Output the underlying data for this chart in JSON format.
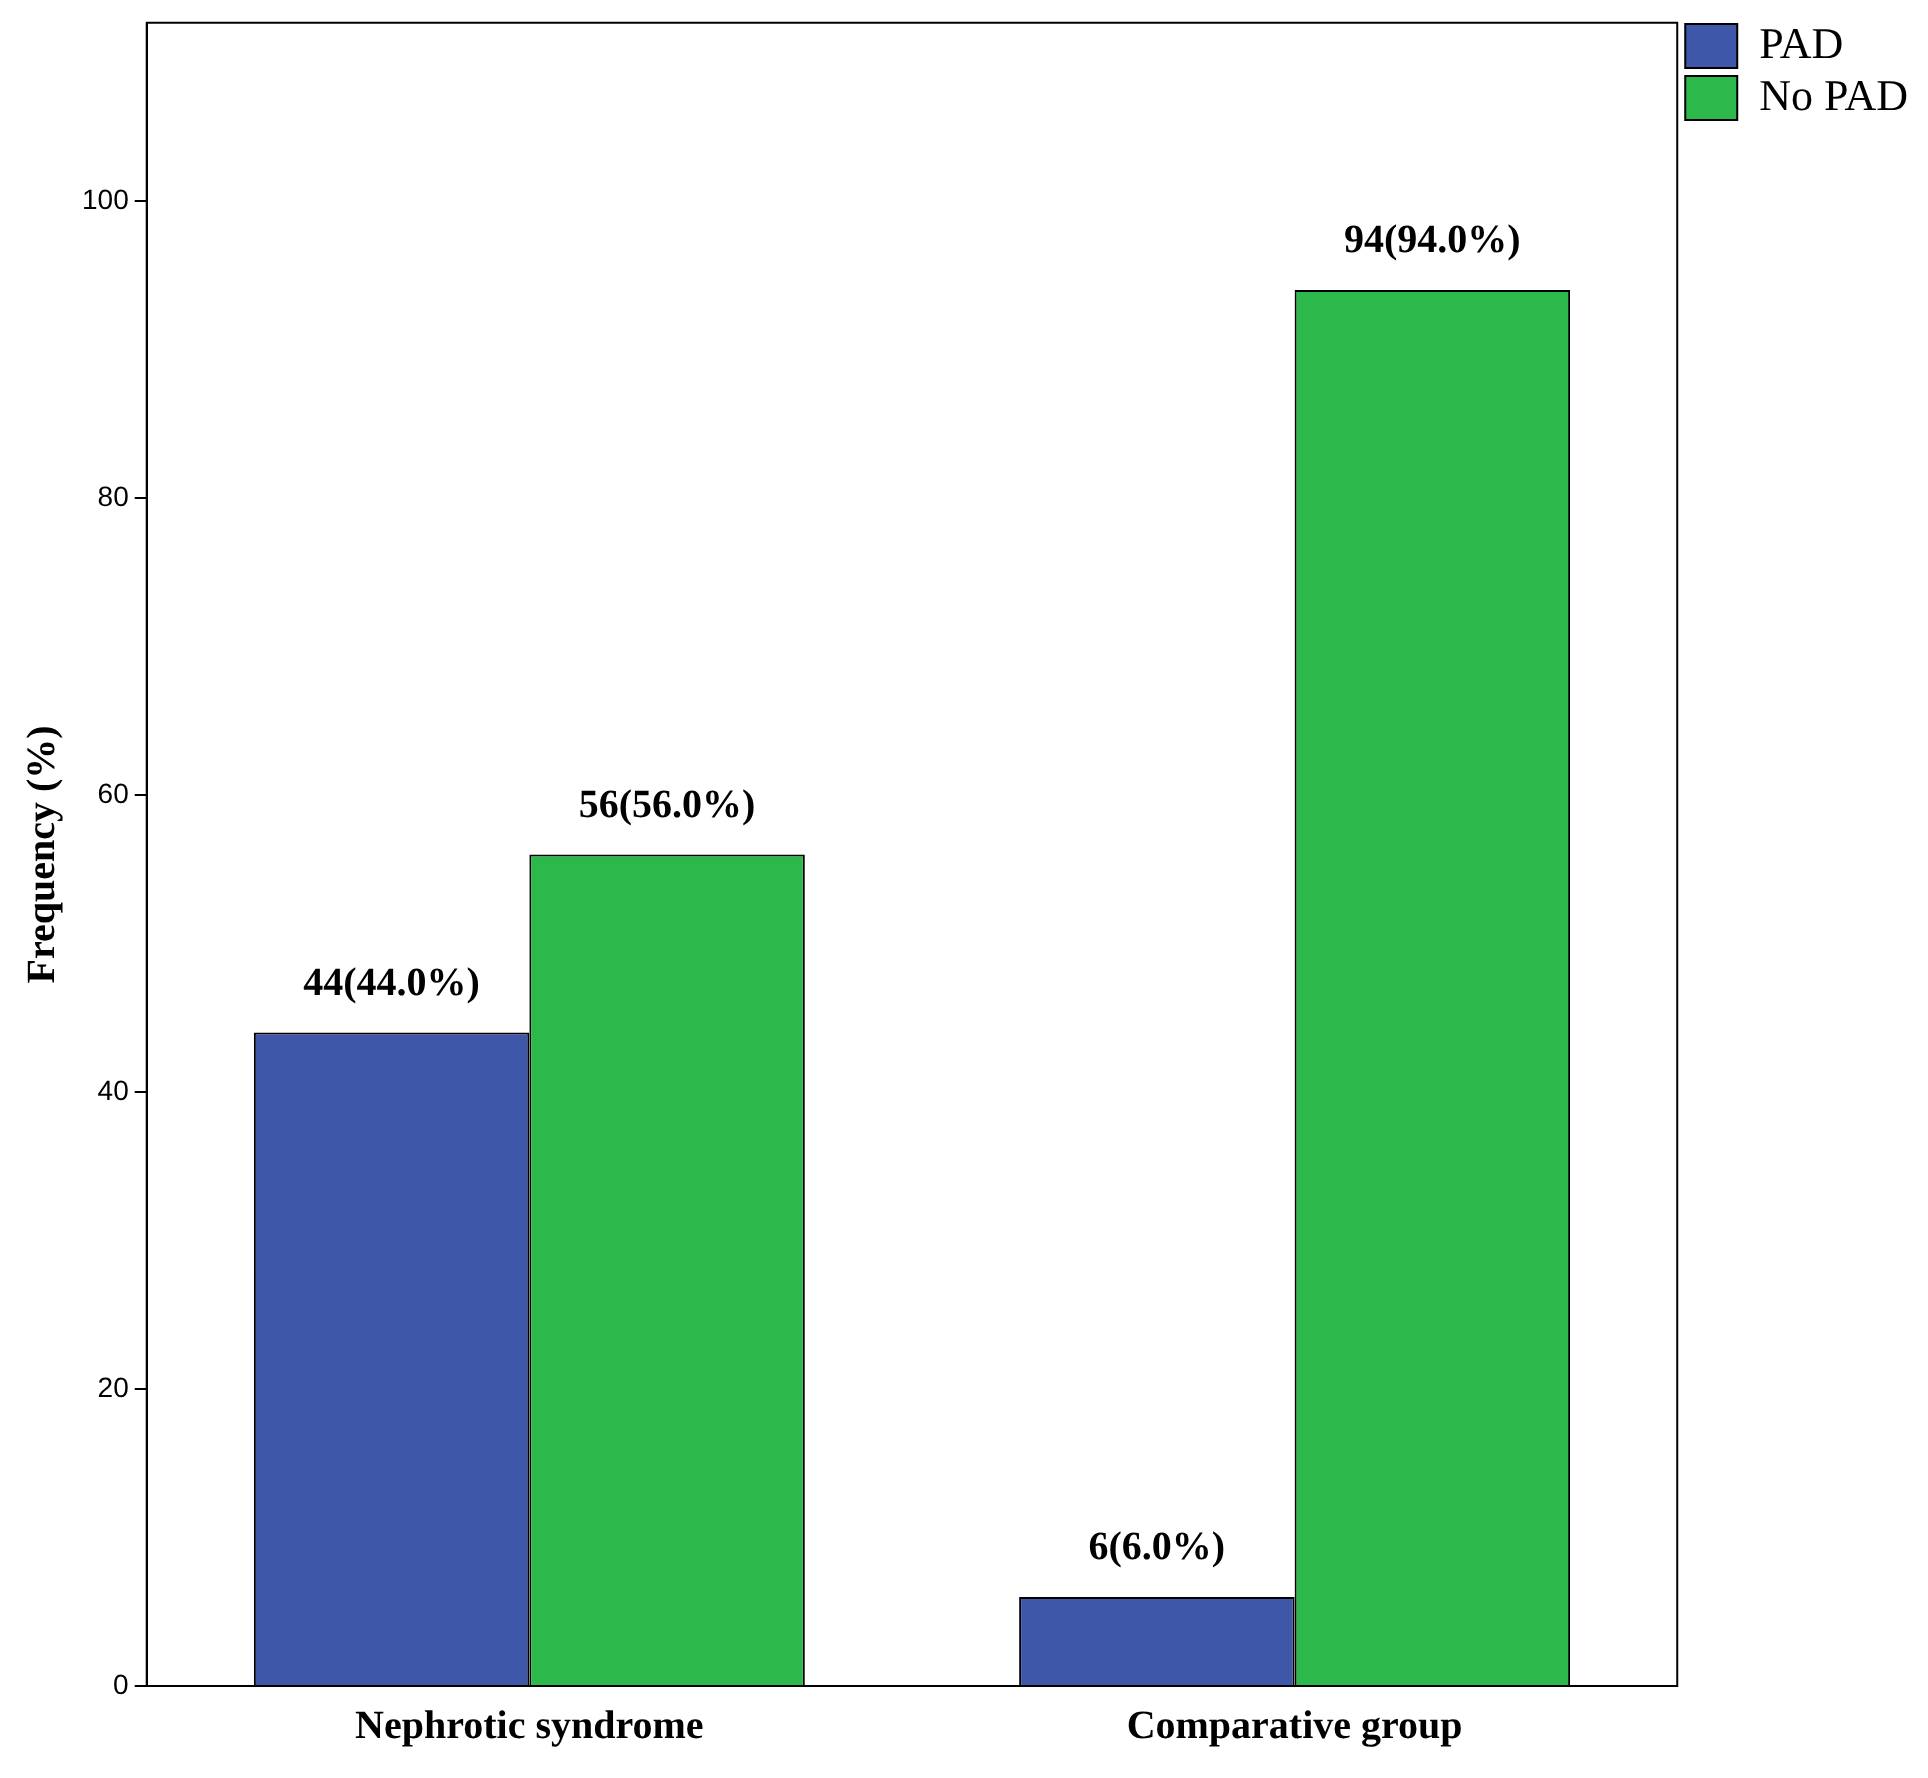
{
  "chart_data": {
    "type": "bar",
    "ylabel": "Frequency (%)",
    "categories": [
      "Nephrotic syndrome",
      "Comparative group"
    ],
    "series": [
      {
        "name": "PAD",
        "color": "#3f57a9",
        "values": [
          44,
          6
        ],
        "value_labels": [
          "44(44.0%)",
          "6(6.0%)"
        ]
      },
      {
        "name": "No PAD",
        "color": "#2db84b",
        "values": [
          56,
          94
        ],
        "value_labels": [
          "56(56.0%)",
          "94(94.0%)"
        ]
      }
    ],
    "ylim": [
      0,
      112
    ],
    "yticks": [
      0,
      20,
      40,
      60,
      80,
      100
    ],
    "grid": false,
    "legend": "top right"
  }
}
